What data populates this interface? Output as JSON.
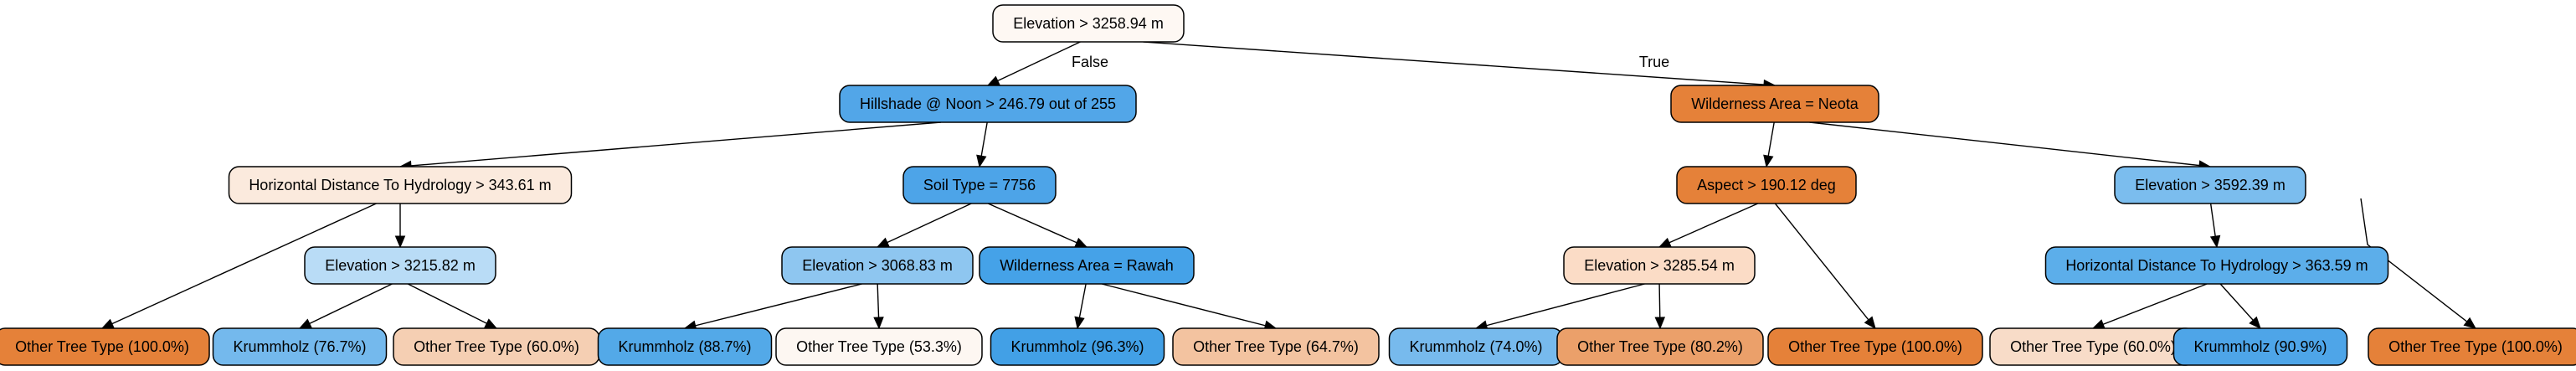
{
  "tree": {
    "edge_labels": {
      "false": "False",
      "true": "True"
    },
    "nodes": [
      {
        "id": "root",
        "label": "Elevation > 3258.94 m",
        "fill": "#fef8f3"
      },
      {
        "id": "n1",
        "label": "Hillshade @ Noon > 246.79 out of 255",
        "fill": "#52a6e8"
      },
      {
        "id": "n2",
        "label": "Wilderness Area = Neota",
        "fill": "#e58139"
      },
      {
        "id": "n3",
        "label": "Horizontal Distance To Hydrology > 343.61 m",
        "fill": "#fbeadd"
      },
      {
        "id": "n4",
        "label": "Soil Type = 7756",
        "fill": "#4da4e8"
      },
      {
        "id": "n5",
        "label": "Aspect > 190.12 deg",
        "fill": "#e58139"
      },
      {
        "id": "n6",
        "label": "Elevation > 3592.39 m",
        "fill": "#7bbdee"
      },
      {
        "id": "n7",
        "label": "Elevation > 3215.82 m",
        "fill": "#b9dcf6"
      },
      {
        "id": "n8",
        "label": "Elevation > 3068.83 m",
        "fill": "#8ec6f0"
      },
      {
        "id": "n9",
        "label": "Wilderness Area = Rawah",
        "fill": "#45a2e8"
      },
      {
        "id": "n10",
        "label": "Elevation > 3285.54 m",
        "fill": "#fbdcc6"
      },
      {
        "id": "n11",
        "label": "Horizontal Distance To Hydrology > 363.59 m",
        "fill": "#5caeea"
      },
      {
        "id": "l1",
        "label": "Other Tree Type (100.0%)",
        "fill": "#e58139"
      },
      {
        "id": "l2",
        "label": "Krummholz (76.7%)",
        "fill": "#74b9ed"
      },
      {
        "id": "l3",
        "label": "Other Tree Type (60.0%)",
        "fill": "#f5cfb3"
      },
      {
        "id": "l4",
        "label": "Krummholz (88.7%)",
        "fill": "#53a9e8"
      },
      {
        "id": "l5",
        "label": "Other Tree Type (53.3%)",
        "fill": "#fdf7f2"
      },
      {
        "id": "l6",
        "label": "Krummholz (96.3%)",
        "fill": "#42a0e6"
      },
      {
        "id": "l7",
        "label": "Other Tree Type (64.7%)",
        "fill": "#f3c3a0"
      },
      {
        "id": "l8",
        "label": "Krummholz (74.0%)",
        "fill": "#77baed"
      },
      {
        "id": "l9",
        "label": "Other Tree Type (80.2%)",
        "fill": "#eba06a"
      },
      {
        "id": "l10",
        "label": "Other Tree Type (100.0%)",
        "fill": "#e58139"
      },
      {
        "id": "l11",
        "label": "Other Tree Type (60.0%)",
        "fill": "#f8dcc8"
      },
      {
        "id": "l12",
        "label": "Krummholz (90.9%)",
        "fill": "#4ea5e8"
      },
      {
        "id": "l13",
        "label": "Other Tree Type (100.0%)",
        "fill": "#e58139"
      }
    ],
    "edges": [
      {
        "from": "root",
        "to": "n1",
        "label": "false"
      },
      {
        "from": "root",
        "to": "n2",
        "label": "true"
      },
      {
        "from": "n1",
        "to": "n3"
      },
      {
        "from": "n1",
        "to": "n4"
      },
      {
        "from": "n2",
        "to": "n5"
      },
      {
        "from": "n2",
        "to": "n6"
      },
      {
        "from": "n3",
        "to": "l1"
      },
      {
        "from": "n3",
        "to": "n7"
      },
      {
        "from": "n7",
        "to": "l2"
      },
      {
        "from": "n7",
        "to": "l3"
      },
      {
        "from": "n4",
        "to": "n8"
      },
      {
        "from": "n4",
        "to": "n9"
      },
      {
        "from": "n8",
        "to": "l4"
      },
      {
        "from": "n8",
        "to": "l5"
      },
      {
        "from": "n9",
        "to": "l6"
      },
      {
        "from": "n9",
        "to": "l7"
      },
      {
        "from": "n5",
        "to": "n10"
      },
      {
        "from": "n5",
        "to": "l10"
      },
      {
        "from": "n10",
        "to": "l8"
      },
      {
        "from": "n10",
        "to": "l9"
      },
      {
        "from": "n6",
        "to": "n11"
      },
      {
        "from": "n6",
        "to": "l13"
      },
      {
        "from": "n11",
        "to": "l11"
      },
      {
        "from": "n11",
        "to": "l12"
      }
    ]
  }
}
